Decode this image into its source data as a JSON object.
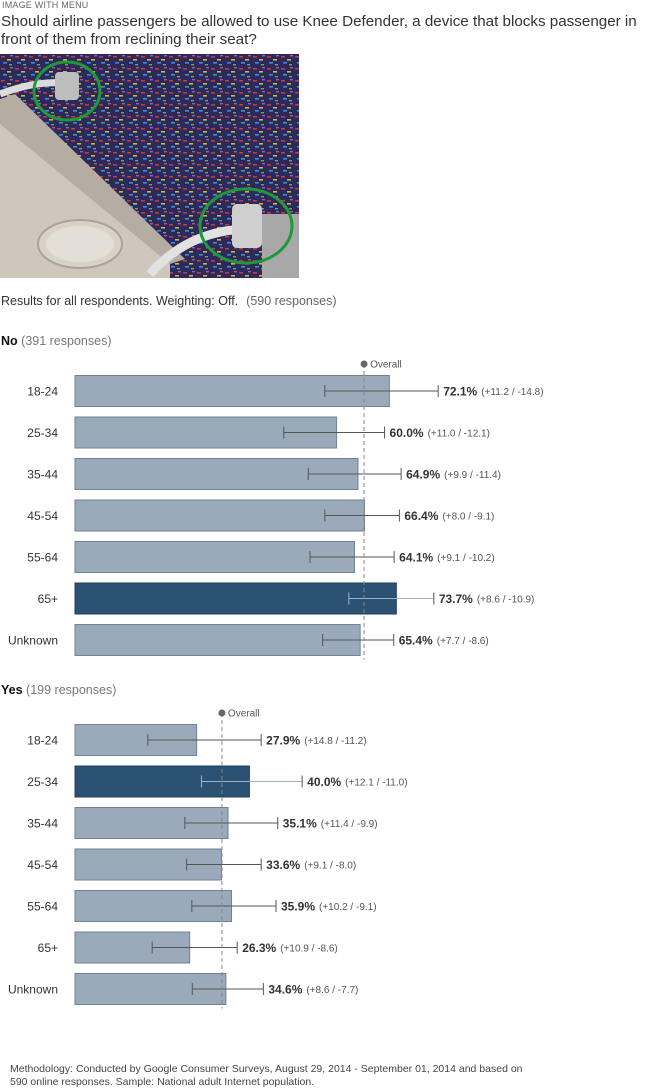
{
  "header": {
    "image_label": "IMAGE WITH MENU",
    "question": "Should airline passengers be allowed to use Knee Defender, a device that blocks passenger in front of them from reclining their seat?"
  },
  "photo": {
    "description_icon": "airplane-seat-photo"
  },
  "results": {
    "text": "Results for all respondents. Weighting: Off.",
    "count": "(590 responses)"
  },
  "colors": {
    "bar": "#9aaabb",
    "bar_border": "#6f8296",
    "highlight": "#2b5173",
    "overall_line": "#888888",
    "error_bar": "#555555"
  },
  "chart_data": [
    {
      "type": "bar",
      "orientation": "horizontal",
      "group_label": "No",
      "group_count": "(391 responses)",
      "overall_label": "Overall",
      "overall_value": 66.3,
      "xlim": [
        0,
        100
      ],
      "highlight": "65+",
      "categories": [
        "18-24",
        "25-34",
        "35-44",
        "45-54",
        "55-64",
        "65+",
        "Unknown"
      ],
      "values": [
        72.1,
        60.0,
        64.9,
        66.4,
        64.1,
        73.7,
        65.4
      ],
      "value_labels": [
        "72.1%",
        "60.0%",
        "64.9%",
        "66.4%",
        "64.1%",
        "73.7%",
        "65.4%"
      ],
      "error_plus": [
        11.2,
        11.0,
        9.9,
        8.0,
        9.1,
        8.6,
        7.7
      ],
      "error_minus": [
        14.8,
        12.1,
        11.4,
        9.1,
        10.2,
        10.9,
        8.6
      ],
      "error_labels": [
        "(+11.2 / -14.8)",
        "(+11.0 / -12.1)",
        "(+9.9 / -11.4)",
        "(+8.0 / -9.1)",
        "(+9.1 / -10.2)",
        "(+8.6 / -10.9)",
        "(+7.7 / -8.6)"
      ]
    },
    {
      "type": "bar",
      "orientation": "horizontal",
      "group_label": "Yes",
      "group_count": "(199 responses)",
      "overall_label": "Overall",
      "overall_value": 33.7,
      "xlim": [
        0,
        100
      ],
      "highlight": "25-34",
      "categories": [
        "18-24",
        "25-34",
        "35-44",
        "45-54",
        "55-64",
        "65+",
        "Unknown"
      ],
      "values": [
        27.9,
        40.0,
        35.1,
        33.6,
        35.9,
        26.3,
        34.6
      ],
      "value_labels": [
        "27.9%",
        "40.0%",
        "35.1%",
        "33.6%",
        "35.9%",
        "26.3%",
        "34.6%"
      ],
      "error_plus": [
        14.8,
        12.1,
        11.4,
        9.1,
        10.2,
        10.9,
        8.6
      ],
      "error_minus": [
        11.2,
        11.0,
        9.9,
        8.0,
        9.1,
        8.6,
        7.7
      ],
      "error_labels": [
        "(+14.8 / -11.2)",
        "(+12.1 / -11.0)",
        "(+11.4 / -9.9)",
        "(+9.1 / -8.0)",
        "(+10.2 / -9.1)",
        "(+10.9 / -8.6)",
        "(+8.6 / -7.7)"
      ]
    }
  ],
  "footer": {
    "methodology": "Methodology: Conducted by Google Consumer Surveys, August 29, 2014 - September 01, 2014 and based on 590 online responses. Sample: National adult Internet population."
  }
}
